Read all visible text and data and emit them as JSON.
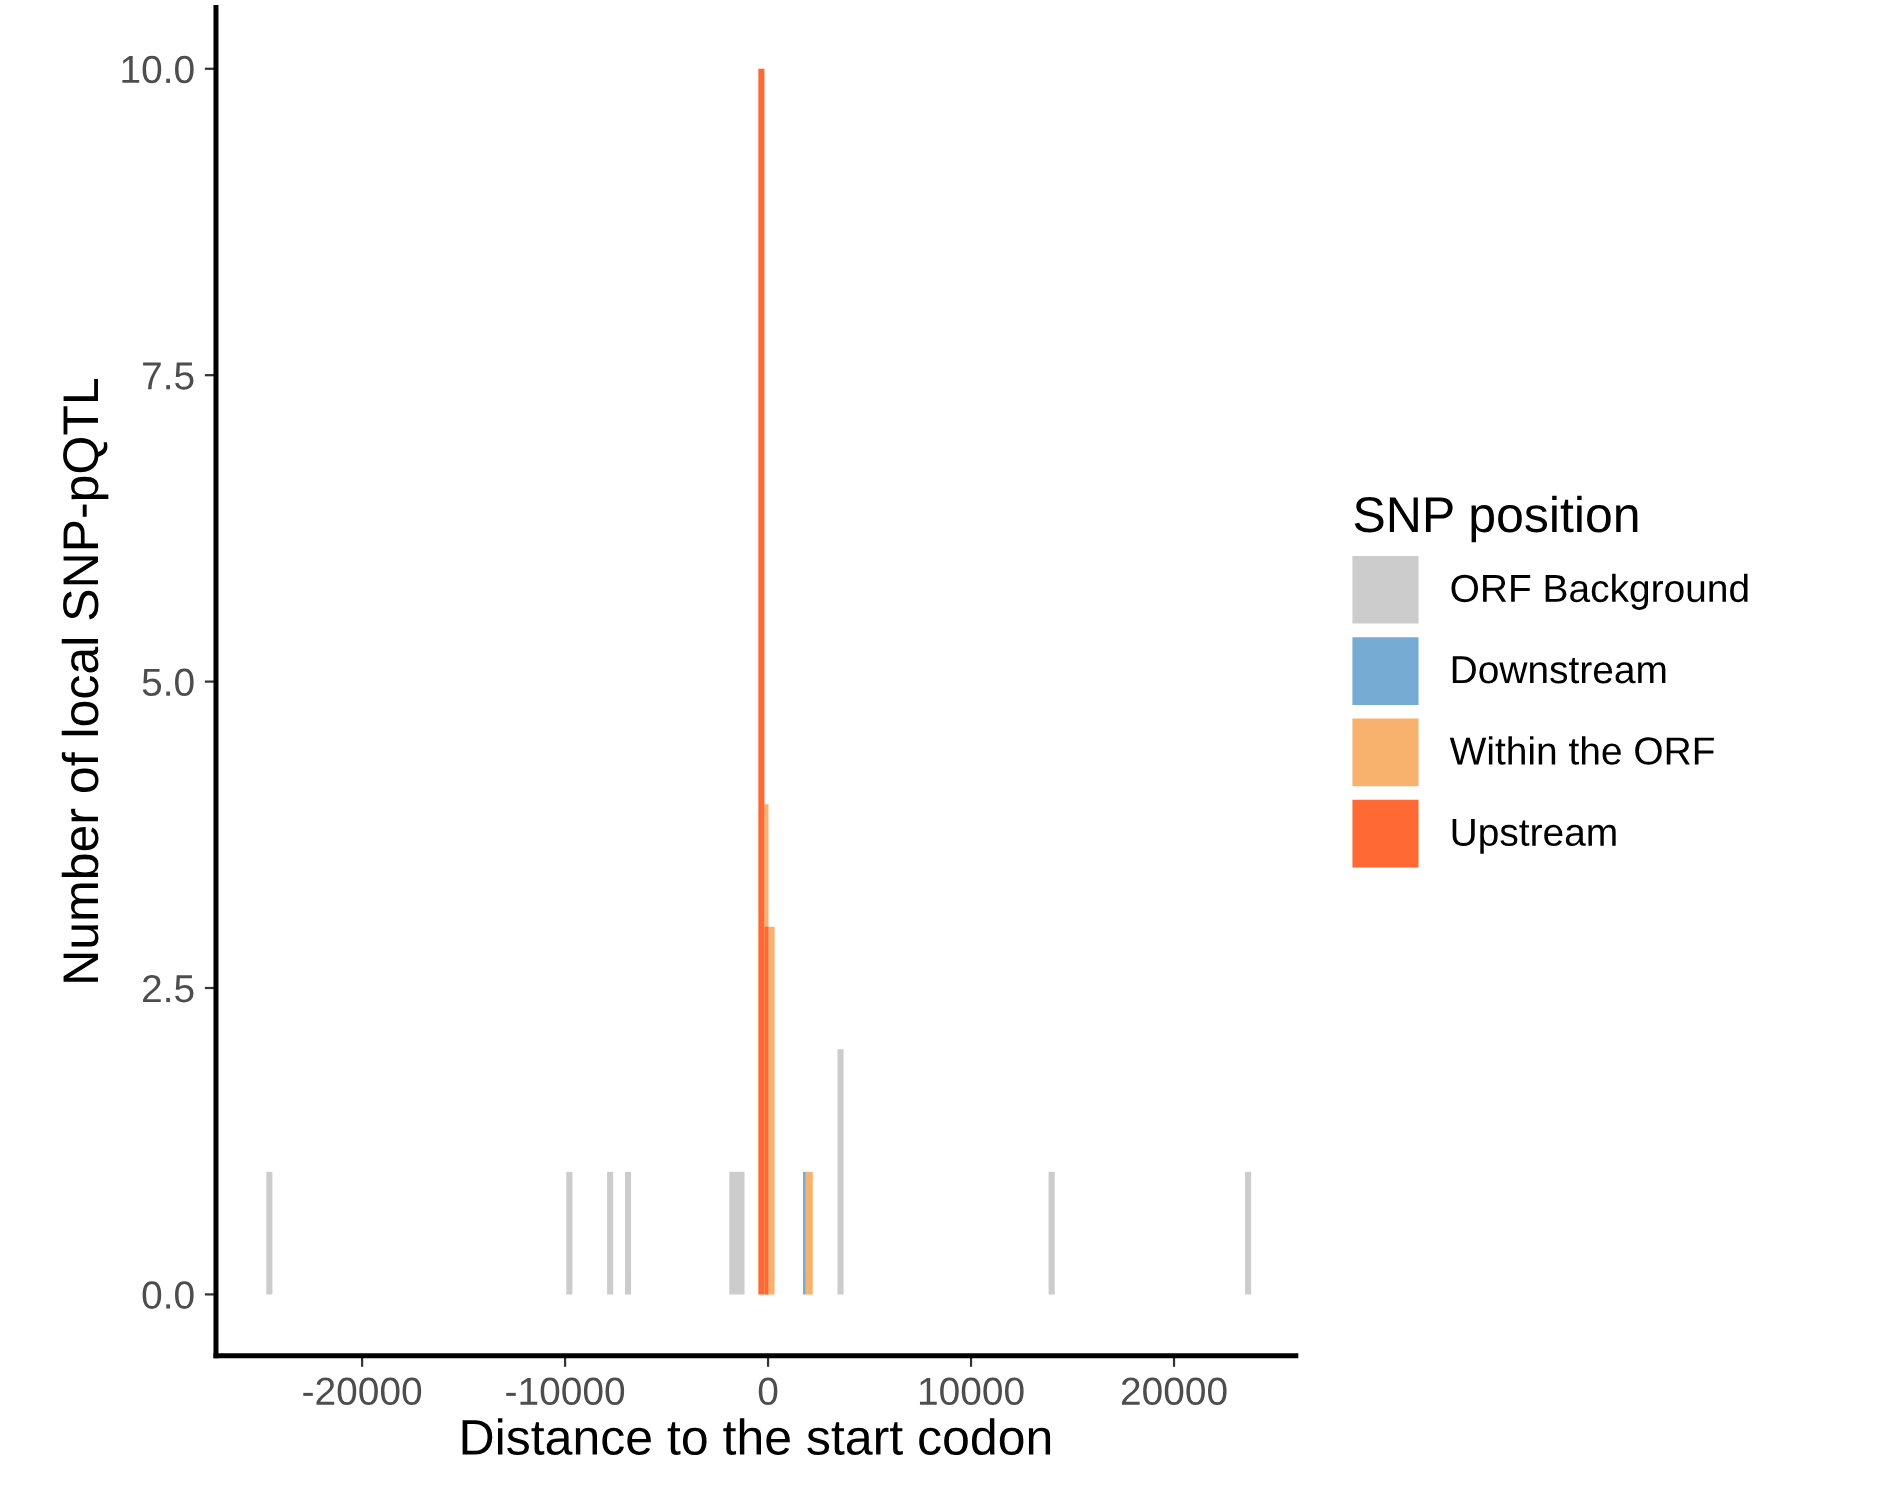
{
  "chart_data": {
    "type": "histogram",
    "xlabel": "Distance to the start codon",
    "ylabel": "Number of local SNP-pQTL",
    "legend_title": "SNP position",
    "legend": "right",
    "grid": false,
    "xlim": [
      -27200,
      26000
    ],
    "xticks": [
      -20000,
      -10000,
      0,
      10000,
      20000
    ],
    "ylim": [
      -0.5,
      10.5
    ],
    "yticks": [
      {
        "value": 0,
        "label": "0.0"
      },
      {
        "value": 2.5,
        "label": "2.5"
      },
      {
        "value": 5,
        "label": "5.0"
      },
      {
        "value": 7.5,
        "label": "7.5"
      },
      {
        "value": 10,
        "label": "10.0"
      }
    ],
    "bins": [
      -24720,
      -24420,
      -9940,
      -9640,
      -7930,
      -7630,
      -7050,
      -6750,
      -1910,
      -1160,
      -480,
      -180,
      20,
      320,
      1720,
      1860,
      2200,
      3420,
      3720,
      13820,
      14120,
      23500,
      23800
    ],
    "series": [
      {
        "name": "ORF Background",
        "color": "#cccccc",
        "values": [
          1,
          0,
          1,
          0,
          1,
          0,
          1,
          0,
          1,
          0,
          0,
          0,
          0,
          0,
          0,
          0,
          0,
          2,
          0,
          1,
          0,
          1
        ]
      },
      {
        "name": "Downstream",
        "color": "#76acd3",
        "values": [
          0,
          0,
          0,
          0,
          0,
          0,
          0,
          0,
          0,
          0,
          0,
          0,
          0,
          0,
          1,
          0,
          0,
          0,
          0,
          0,
          0,
          0
        ]
      },
      {
        "name": "Within the ORF",
        "color": "#f9b26d",
        "values": [
          0,
          0,
          0,
          0,
          0,
          0,
          0,
          0,
          0,
          0,
          0,
          4,
          3,
          0,
          0,
          1,
          0,
          0,
          0,
          0,
          0,
          0
        ]
      },
      {
        "name": "Upstream",
        "color": "#ff6933",
        "values": [
          0,
          0,
          0,
          0,
          0,
          0,
          0,
          0,
          0,
          0,
          10,
          3,
          0,
          0,
          0,
          0,
          0,
          0,
          0,
          0,
          0,
          0
        ]
      }
    ]
  }
}
